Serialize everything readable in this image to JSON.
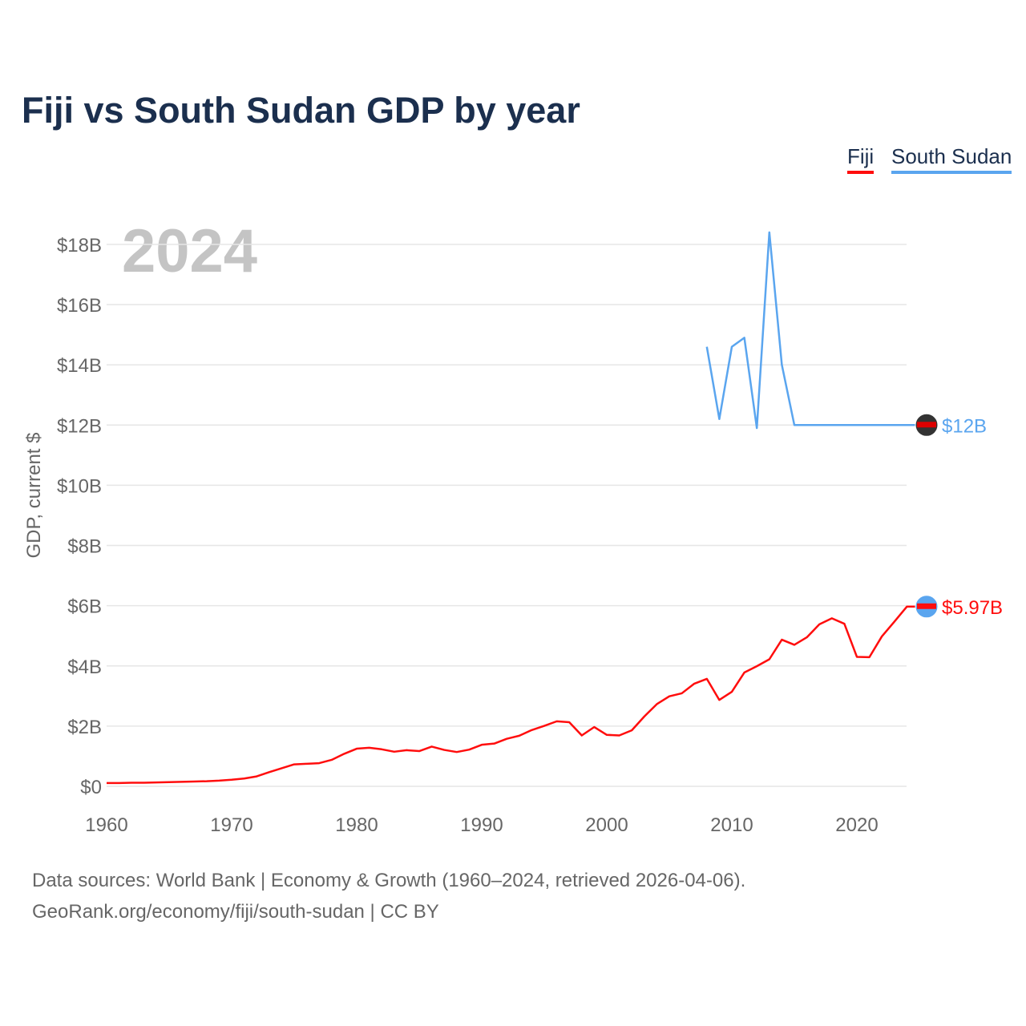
{
  "chart_data": {
    "type": "line",
    "title": "Fiji vs South Sudan GDP by year",
    "ylabel": "GDP, current $",
    "xlabel": "",
    "current_year": "2024",
    "xlim": [
      1960,
      2024
    ],
    "ylim": [
      0,
      18
    ],
    "x_ticks": [
      1960,
      1970,
      1980,
      1990,
      2000,
      2010,
      2020
    ],
    "y_ticks": [
      {
        "v": 0,
        "label": "$0"
      },
      {
        "v": 2,
        "label": "$2B"
      },
      {
        "v": 4,
        "label": "$4B"
      },
      {
        "v": 6,
        "label": "$6B"
      },
      {
        "v": 8,
        "label": "$8B"
      },
      {
        "v": 10,
        "label": "$10B"
      },
      {
        "v": 12,
        "label": "$12B"
      },
      {
        "v": 14,
        "label": "$14B"
      },
      {
        "v": 16,
        "label": "$16B"
      },
      {
        "v": 18,
        "label": "$18B"
      }
    ],
    "legend_position": "top-right",
    "series": [
      {
        "name": "Fiji",
        "color": "#ff0d0d",
        "end_label": "$5.97B",
        "start_year": 1960,
        "values": [
          0.11,
          0.11,
          0.12,
          0.12,
          0.13,
          0.14,
          0.15,
          0.16,
          0.17,
          0.19,
          0.22,
          0.26,
          0.33,
          0.47,
          0.6,
          0.73,
          0.75,
          0.77,
          0.88,
          1.08,
          1.25,
          1.28,
          1.23,
          1.15,
          1.2,
          1.17,
          1.32,
          1.21,
          1.14,
          1.22,
          1.38,
          1.42,
          1.58,
          1.68,
          1.87,
          2.01,
          2.16,
          2.13,
          1.69,
          1.97,
          1.71,
          1.69,
          1.86,
          2.32,
          2.73,
          2.99,
          3.09,
          3.41,
          3.57,
          2.87,
          3.14,
          3.78,
          3.99,
          4.22,
          4.87,
          4.7,
          4.95,
          5.38,
          5.58,
          5.4,
          4.3,
          4.29,
          4.98,
          5.47,
          5.97
        ]
      },
      {
        "name": "South Sudan",
        "color": "#5aa5ef",
        "end_label": "$12B",
        "start_year": 2008,
        "values": [
          14.6,
          12.2,
          14.6,
          14.9,
          11.9,
          18.4,
          14.0,
          12.0,
          12.0,
          12.0,
          12.0,
          12.0,
          12.0,
          12.0,
          12.0,
          12.0,
          12.0
        ]
      }
    ]
  },
  "footer": {
    "line1": "Data sources: World Bank | Economy & Growth (1960–2024, retrieved 2026-04-06).",
    "line2": "GeoRank.org/economy/fiji/south-sudan | CC BY"
  }
}
